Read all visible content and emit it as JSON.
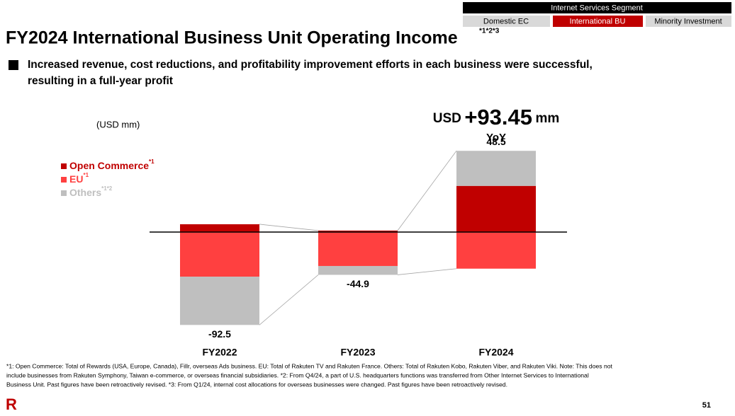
{
  "header": {
    "segment": "Internet Services Segment",
    "tabs": [
      "Domestic EC",
      "International BU",
      "Minority Investment"
    ],
    "title": "FY2024 International Business Unit Operating Income",
    "title_note": "*1*2*3",
    "subtitle_lines": [
      "Increased revenue, cost reductions, and profitability improvement efforts in each business were successful,",
      "resulting in a full-year profit"
    ]
  },
  "chart_data": {
    "type": "bar",
    "stacked": true,
    "unit": "(USD mm)",
    "categories": [
      "FY2022",
      "FY2023",
      "FY2024"
    ],
    "series": [
      {
        "name": "Open Commerce",
        "note": "*1",
        "color": "#c00000",
        "values": [
          8.5,
          1.6,
          50.2
        ]
      },
      {
        "name": "EU",
        "note": "*1",
        "color": "#ff4040",
        "values": [
          -48.5,
          -36.9,
          -39.8
        ]
      },
      {
        "name": "Others",
        "note": "*1*2",
        "color": "#bfbfbf",
        "values": [
          -52.5,
          -9.6,
          38.1
        ]
      }
    ],
    "totals": [
      -92.5,
      -44.9,
      48.5
    ],
    "ylim": [
      -115,
      120
    ],
    "annotation": {
      "prefix": "USD",
      "value": "+93.45",
      "unit": "mm",
      "label": "YoY"
    }
  },
  "footnotes": [
    "*1: Open Commerce: Total of Rewards (USA, Europe, Canada), Fillr, overseas Ads business. EU: Total of Rakuten TV and Rakuten France. Others: Total of Rakuten Kobo, Rakuten Viber, and Rakuten Viki. Note: This does not",
    "include businesses from Rakuten Symphony, Taiwan e-commerce, or overseas financial subsidiaries. *2: From Q4/24, a part of U.S. headquarters functions was transferred from Other Internet Services to International",
    "Business Unit. Past figures have been retroactively revised. *3: From Q1/24, internal cost allocations for overseas businesses were changed. Past figures have been retroactively revised."
  ],
  "footer": {
    "logo": "R",
    "page": "51"
  }
}
